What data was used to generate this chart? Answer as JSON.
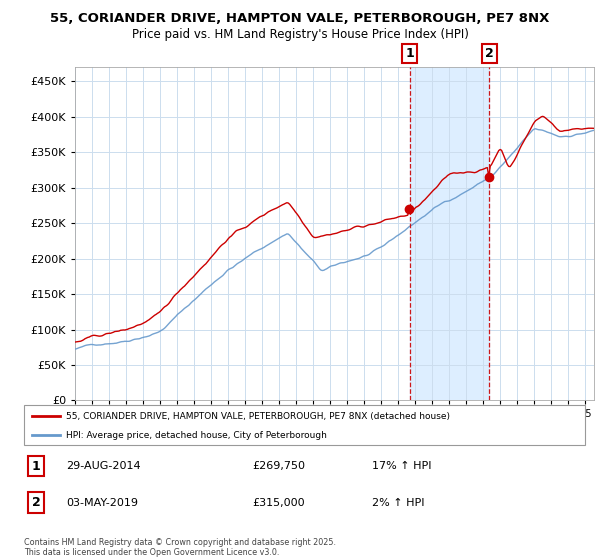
{
  "title1": "55, CORIANDER DRIVE, HAMPTON VALE, PETERBOROUGH, PE7 8NX",
  "title2": "Price paid vs. HM Land Registry's House Price Index (HPI)",
  "ytick_values": [
    0,
    50000,
    100000,
    150000,
    200000,
    250000,
    300000,
    350000,
    400000,
    450000
  ],
  "ylim": [
    0,
    470000
  ],
  "sale1_year": 2014.667,
  "sale1_price": 269750,
  "sale1_date": "29-AUG-2014",
  "sale1_hpi_text": "17% ↑ HPI",
  "sale2_year": 2019.333,
  "sale2_price": 315000,
  "sale2_date": "03-MAY-2019",
  "sale2_hpi_text": "2% ↑ HPI",
  "legend_line1": "55, CORIANDER DRIVE, HAMPTON VALE, PETERBOROUGH, PE7 8NX (detached house)",
  "legend_line2": "HPI: Average price, detached house, City of Peterborough",
  "footer": "Contains HM Land Registry data © Crown copyright and database right 2025.\nThis data is licensed under the Open Government Licence v3.0.",
  "property_color": "#cc0000",
  "hpi_color": "#6699cc",
  "vline_color": "#cc0000",
  "shade_color": "#ddeeff",
  "grid_color": "#ccddee",
  "bg_color": "#ffffff"
}
